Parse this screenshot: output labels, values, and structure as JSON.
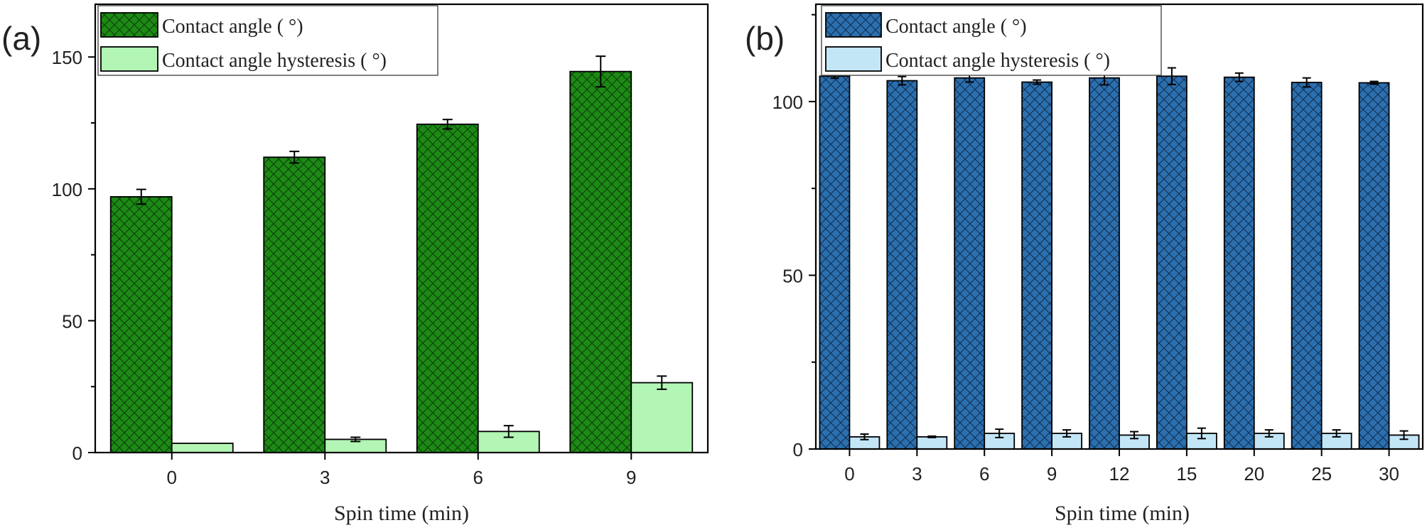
{
  "chart_data": [
    {
      "panel_label": "(a)",
      "type": "bar",
      "categories": [
        "0",
        "3",
        "6",
        "9"
      ],
      "xlabel": "Spin time (min)",
      "ylabel": "",
      "ylim": [
        0,
        170
      ],
      "yticks": [
        "0",
        "50",
        "100",
        "150"
      ],
      "legend_position": "top-left",
      "series": [
        {
          "name": "Contact angle ( °)",
          "values": [
            97,
            112,
            124.5,
            144.5
          ],
          "errors": [
            2.8,
            2.2,
            1.8,
            5.8
          ],
          "color": "#1d8a16",
          "pattern": "crosshatch"
        },
        {
          "name": "Contact angle hysteresis ( °)",
          "values": [
            3.5,
            5,
            8,
            26.5
          ],
          "errors": [
            0,
            0.8,
            2.2,
            2.5
          ],
          "color": "#b2f5b4",
          "pattern": "none"
        }
      ]
    },
    {
      "panel_label": "(b)",
      "type": "bar",
      "categories": [
        "0",
        "3",
        "6",
        "9",
        "12",
        "15",
        "20",
        "25",
        "30"
      ],
      "xlabel": "Spin time (min)",
      "ylabel": "",
      "ylim": [
        0,
        128
      ],
      "yticks": [
        "0",
        "50",
        "100"
      ],
      "legend_position": "top-left",
      "series": [
        {
          "name": "Contact angle ( °)",
          "values": [
            107.3,
            106,
            106.8,
            105.6,
            106.8,
            107.3,
            107,
            105.5,
            105.4
          ],
          "errors": [
            0.6,
            1.2,
            1.2,
            0.6,
            2.0,
            2.4,
            1.2,
            1.3,
            0.4
          ],
          "color": "#2c6fae",
          "pattern": "crosshatch"
        },
        {
          "name": "Contact angle hysteresis ( °)",
          "values": [
            3.5,
            3.5,
            4.5,
            4.5,
            4,
            4.5,
            4.5,
            4.5,
            4
          ],
          "errors": [
            0.8,
            0.2,
            1.2,
            1.0,
            1.0,
            1.5,
            1.0,
            1.0,
            1.2
          ],
          "color": "#c3e6f7",
          "pattern": "none"
        }
      ]
    }
  ]
}
